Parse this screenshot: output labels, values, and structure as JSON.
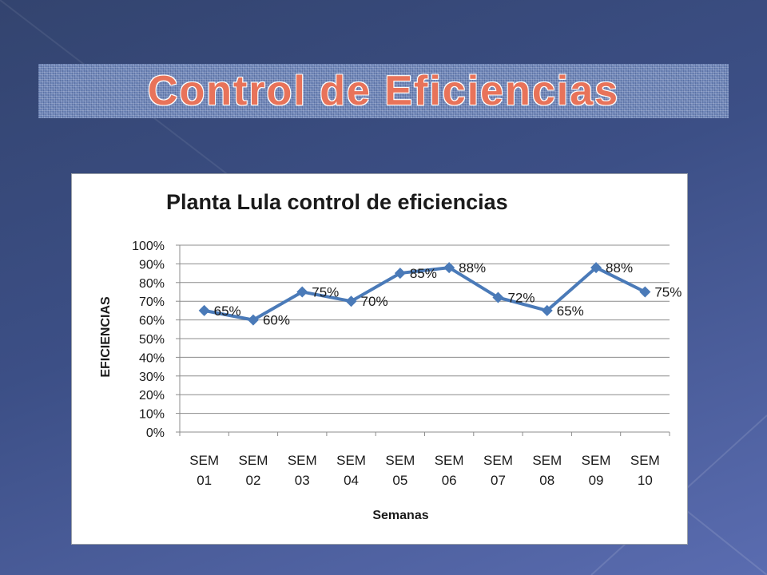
{
  "slide": {
    "title": "Control de Eficiencias"
  },
  "chart_data": {
    "type": "line",
    "title": "Planta Lula  control de eficiencias",
    "xlabel": "Semanas",
    "ylabel": "EFICIENCIAS",
    "categories": [
      "SEM 01",
      "SEM 02",
      "SEM 03",
      "SEM 04",
      "SEM 05",
      "SEM 06",
      "SEM 07",
      "SEM 08",
      "SEM 09",
      "SEM 10"
    ],
    "values": [
      65,
      60,
      75,
      70,
      85,
      88,
      72,
      65,
      88,
      75
    ],
    "data_labels": [
      "65%",
      "60%",
      "75%",
      "70%",
      "85%",
      "88%",
      "72%",
      "65%",
      "88%",
      "75%"
    ],
    "yticks": [
      "0%",
      "10%",
      "20%",
      "30%",
      "40%",
      "50%",
      "60%",
      "70%",
      "80%",
      "90%",
      "100%"
    ],
    "ylim": [
      0,
      100
    ],
    "grid": true,
    "legend": "none",
    "colors": {
      "line": "#4a7ab8",
      "grid": "#8c8c8c",
      "title": "#e8735a"
    }
  }
}
